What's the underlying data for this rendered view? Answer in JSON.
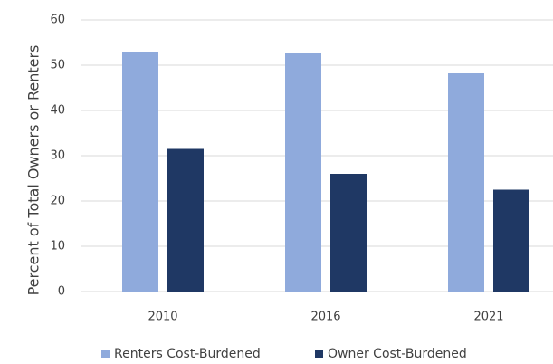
{
  "chart_data": {
    "type": "bar",
    "ylabel": "Percent of Total Owners or Renters",
    "categories": [
      "2010",
      "2016",
      "2021"
    ],
    "series": [
      {
        "name": "Renters Cost-Burdened",
        "color": "#8faadc",
        "values": [
          53,
          52.7,
          48.2
        ]
      },
      {
        "name": "Owner Cost-Burdened",
        "color": "#1f3864",
        "values": [
          31.5,
          26,
          22.5
        ]
      }
    ],
    "ylim": [
      0,
      60
    ],
    "yticks": [
      0,
      10,
      20,
      30,
      40,
      50,
      60
    ],
    "grid": true,
    "legend": "bottom"
  }
}
